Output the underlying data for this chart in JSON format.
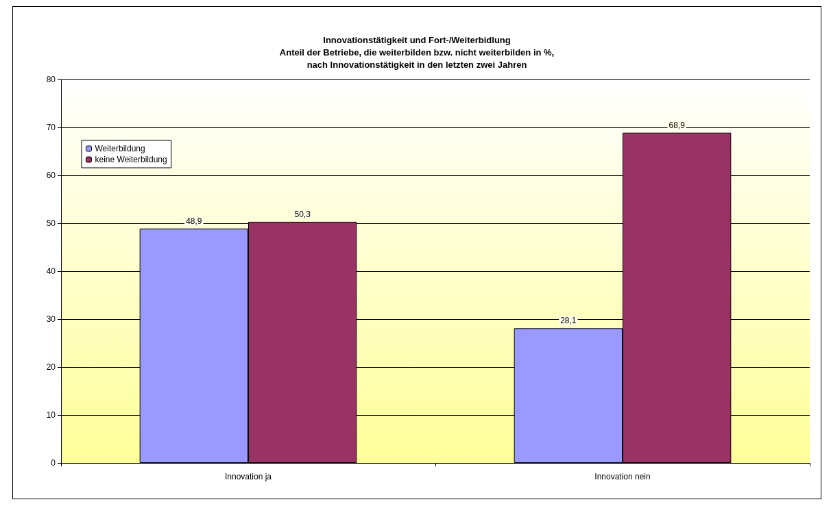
{
  "chart_data": {
    "type": "bar",
    "title": "Innovationstätigkeit und Fort-/Weiterbidlung\nAnteil der Betriebe, die weiterbilden bzw. nicht weiterbilden in %,\nnach Innovationstätigkeit in den letzten zwei Jahren",
    "categories": [
      "Innovation ja",
      "Innovation nein"
    ],
    "series": [
      {
        "name": "Weiterbildung",
        "color": "#9999ff",
        "values": [
          48.9,
          28.1
        ],
        "value_labels": [
          "48,9",
          "28,1"
        ]
      },
      {
        "name": "keine Weiterbildung",
        "color": "#993366",
        "values": [
          50.3,
          68.9
        ],
        "value_labels": [
          "50,3",
          "68,9"
        ]
      }
    ],
    "ylim": [
      0,
      80
    ],
    "yticks": [
      0,
      10,
      20,
      30,
      40,
      50,
      60,
      70,
      80
    ],
    "grid": "y",
    "legend": "top left"
  }
}
